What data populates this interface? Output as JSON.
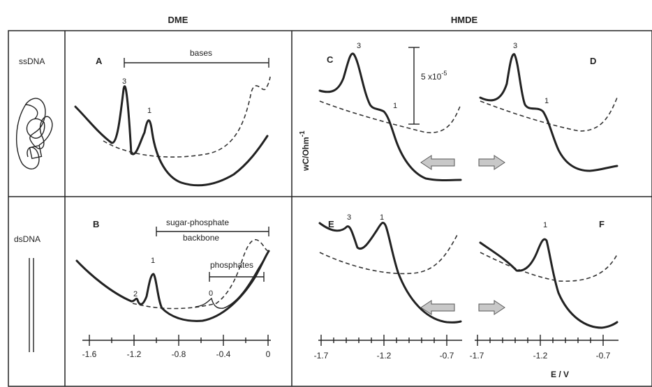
{
  "headers": {
    "dme": "DME",
    "hmde": "HMDE"
  },
  "rows": {
    "ss": "ssDNA",
    "ds": "dsDNA"
  },
  "panels": {
    "a": "A",
    "b": "B",
    "c": "C",
    "d": "D",
    "e": "E",
    "f": "F"
  },
  "annotations": {
    "bases": "bases",
    "sugar_phosphate_1": "sugar-phosphate",
    "sugar_phosphate_2": "backbone",
    "phosphates": "phosphates",
    "scale": "5 x10",
    "scale_exp": "-5",
    "y_axis": "wC/Ohm",
    "y_axis_exp": "-1",
    "x_axis": "E / V"
  },
  "peaks": {
    "a3": "3",
    "a1": "1",
    "b2": "2",
    "b1": "1",
    "b0": "0",
    "c3": "3",
    "c1": "1",
    "d3": "3",
    "d1": "1",
    "e3": "3",
    "e1": "1",
    "f1": "1"
  },
  "dme_ticks": [
    "-1.6",
    "-1.2",
    "-0.8",
    "-0.4",
    "0"
  ],
  "hmde_left_ticks": [
    "-1.7",
    "-1.2",
    "-0.7"
  ],
  "hmde_right_ticks": [
    "-1.7",
    "-1.2",
    "-0.7"
  ]
}
